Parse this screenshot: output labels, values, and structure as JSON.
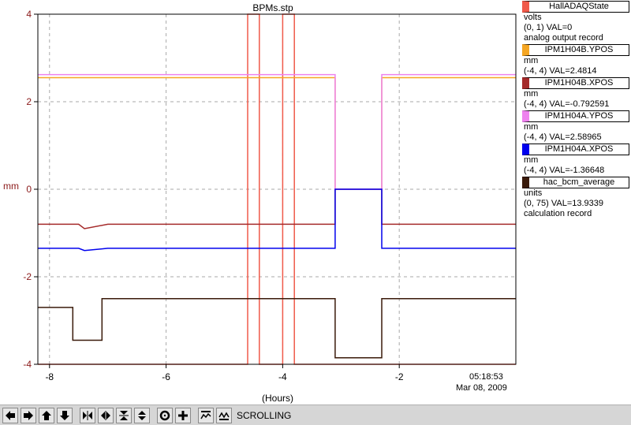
{
  "chart_data": {
    "type": "line",
    "title": "BPMs.stp",
    "xlabel": "(Hours)",
    "ylabel": "mm",
    "xlim": [
      -8.2,
      0
    ],
    "ylim": [
      -4,
      4
    ],
    "x_ticks": [
      -8,
      -6,
      -4,
      -2
    ],
    "y_ticks": [
      -4,
      -2,
      0,
      2,
      4
    ],
    "time_label": "05:18:53",
    "date_label": "Mar 08, 2009",
    "grid": true,
    "series": [
      {
        "name": "HallADAQState",
        "color": "#f05a4a",
        "units": "volts",
        "range": "(0, 1)",
        "value_text": "VAL=0",
        "record": "analog output record",
        "x": [
          -8.2,
          -4.6,
          -4.6,
          -4.4,
          -4.4,
          -4.0,
          -4.0,
          -3.8,
          -3.8,
          0
        ],
        "y": [
          -4,
          -4,
          4,
          4,
          -4,
          -4,
          4,
          4,
          -4,
          -4
        ]
      },
      {
        "name": "IPM1H04B.YPOS",
        "color": "#f5a623",
        "units": "mm",
        "range": "(-4, 4)",
        "value_text": "VAL=2.4814",
        "x": [
          -8.2,
          -3.1,
          -3.1,
          -2.3,
          -2.3,
          -0.8,
          -0.8,
          0
        ],
        "y": [
          2.55,
          2.55,
          0,
          0,
          2.55,
          2.55,
          2.55,
          2.55
        ]
      },
      {
        "name": "IPM1H04B.XPOS",
        "color": "#a52a2a",
        "units": "mm",
        "range": "(-4, 4)",
        "value_text": "VAL=-0.792591",
        "x": [
          -8.2,
          -7.5,
          -7.4,
          -7.0,
          -3.1,
          -3.1,
          -2.3,
          -2.3,
          0
        ],
        "y": [
          -0.8,
          -0.8,
          -0.9,
          -0.8,
          -0.8,
          0,
          0,
          -0.8,
          -0.8
        ]
      },
      {
        "name": "IPM1H04A.YPOS",
        "color": "#ee82ee",
        "units": "mm",
        "range": "(-4, 4)",
        "value_text": "VAL=2.58965",
        "x": [
          -8.2,
          -3.1,
          -3.1,
          -2.3,
          -2.3,
          -0.8,
          -0.8,
          0
        ],
        "y": [
          2.62,
          2.62,
          0,
          0,
          2.62,
          2.62,
          2.62,
          2.62
        ]
      },
      {
        "name": "IPM1H04A.XPOS",
        "color": "#0000ee",
        "units": "mm",
        "range": "(-4, 4)",
        "value_text": "VAL=-1.36648",
        "x": [
          -8.2,
          -7.5,
          -7.4,
          -7.0,
          -3.1,
          -3.1,
          -2.3,
          -2.3,
          0
        ],
        "y": [
          -1.35,
          -1.35,
          -1.4,
          -1.35,
          -1.35,
          0,
          0,
          -1.35,
          -1.35
        ]
      },
      {
        "name": "hac_bcm_average",
        "color": "#3a1a0a",
        "units": "units",
        "range": "(0, 75)",
        "value_text": "VAL=13.9339",
        "record": "calculation record",
        "x": [
          -8.2,
          -7.6,
          -7.6,
          -7.1,
          -7.1,
          -3.1,
          -3.1,
          -2.3,
          -2.3,
          0
        ],
        "y": [
          -2.7,
          -2.7,
          -3.45,
          -3.45,
          -2.5,
          -2.5,
          -3.85,
          -3.85,
          -2.5,
          -2.5
        ]
      }
    ]
  },
  "toolbar": {
    "buttons": [
      "arrow-left-icon",
      "arrow-right-icon",
      "arrow-up-icon",
      "arrow-down-icon",
      "compress-horizontal-icon",
      "expand-horizontal-icon",
      "compress-vertical-icon",
      "expand-vertical-icon",
      "zoom-out-icon",
      "zoom-in-icon",
      "autoscale-icon",
      "scroll-mode-icon"
    ],
    "mode_label": "SCROLLING"
  }
}
